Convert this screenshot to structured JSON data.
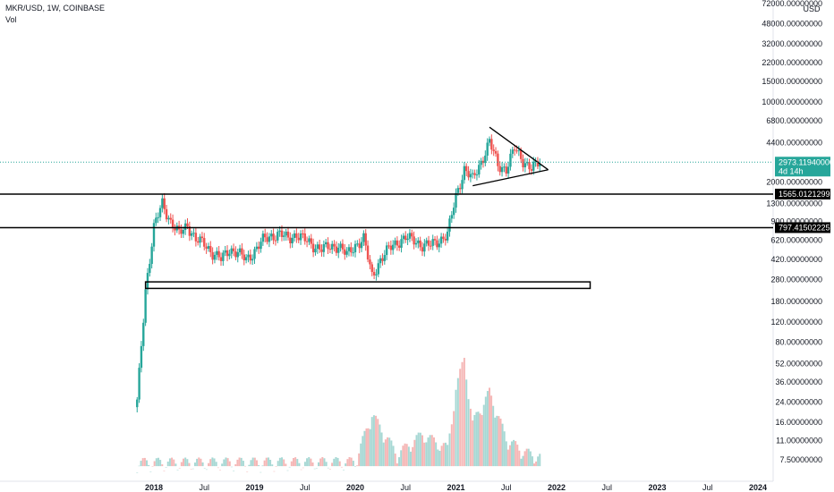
{
  "header": {
    "symbol_line": "MKR/USD, 1W, COINBASE",
    "volume_label": "Vol"
  },
  "colors": {
    "up": "#26a69a",
    "down": "#ef5350",
    "volume_up": "#a7d8d4",
    "volume_down": "#f5b7b6",
    "last_price": "#26a69a",
    "level": "#000000"
  },
  "chart_data": {
    "type": "candlestick",
    "y_scale": "log",
    "ylim": [
      6.5,
      72000
    ],
    "y_unit": "USD",
    "y_ticks": [
      "72000.00000000",
      "48000.00000000",
      "32000.00000000",
      "22000.00000000",
      "15000.00000000",
      "10000.00000000",
      "6800.00000000",
      "4400.00000000",
      "2000.00000000",
      "1300.00000000",
      "900.00000000",
      "620.00000000",
      "420.00000000",
      "280.00000000",
      "180.00000000",
      "120.00000000",
      "80.00000000",
      "52.00000000",
      "36.00000000",
      "24.00000000",
      "16.00000000",
      "11.00000000",
      "7.50000000"
    ],
    "x_ticks": [
      "2018",
      "Jul",
      "2019",
      "Jul",
      "2020",
      "Jul",
      "2021",
      "Jul",
      "2022",
      "Jul",
      "2023",
      "Jul",
      "2024"
    ],
    "last_price": {
      "value": "2973.11940000",
      "countdown": "4d 14h"
    },
    "horizontal_levels": [
      {
        "value": 1565.01212999,
        "label": "1565.01212999"
      },
      {
        "value": 797.41502225,
        "label": "797.41502225"
      }
    ],
    "support_zone": {
      "from": "2017-12",
      "to": "2022-05",
      "low": 235,
      "high": 268
    },
    "triangle": {
      "apex_date": "2021-12",
      "apex_price": 2550,
      "upper_start": [
        "2021-05",
        6000
      ],
      "lower_start": [
        "2021-03",
        1850
      ]
    },
    "price_path": [
      [
        "2017-11",
        24
      ],
      [
        "2017-12",
        230
      ],
      [
        "2018-01",
        800
      ],
      [
        "2018-02",
        1300
      ],
      [
        "2018-03",
        900
      ],
      [
        "2018-04",
        700
      ],
      [
        "2018-05",
        850
      ],
      [
        "2018-06",
        620
      ],
      [
        "2018-07",
        580
      ],
      [
        "2018-08",
        480
      ],
      [
        "2018-09",
        420
      ],
      [
        "2018-10",
        520
      ],
      [
        "2018-11",
        480
      ],
      [
        "2018-12",
        420
      ],
      [
        "2019-01",
        500
      ],
      [
        "2019-02",
        620
      ],
      [
        "2019-03",
        680
      ],
      [
        "2019-04",
        700
      ],
      [
        "2019-05",
        640
      ],
      [
        "2019-06",
        700
      ],
      [
        "2019-07",
        620
      ],
      [
        "2019-08",
        560
      ],
      [
        "2019-09",
        520
      ],
      [
        "2019-10",
        540
      ],
      [
        "2019-11",
        560
      ],
      [
        "2019-12",
        460
      ],
      [
        "2020-01",
        560
      ],
      [
        "2020-02",
        640
      ],
      [
        "2020-03",
        300
      ],
      [
        "2020-04",
        420
      ],
      [
        "2020-05",
        520
      ],
      [
        "2020-06",
        600
      ],
      [
        "2020-07",
        650
      ],
      [
        "2020-08",
        620
      ],
      [
        "2020-09",
        560
      ],
      [
        "2020-10",
        560
      ],
      [
        "2020-11",
        620
      ],
      [
        "2020-12",
        700
      ],
      [
        "2021-01",
        1500
      ],
      [
        "2021-02",
        2600
      ],
      [
        "2021-03",
        2100
      ],
      [
        "2021-04",
        3000
      ],
      [
        "2021-05",
        4500
      ],
      [
        "2021-06",
        2800
      ],
      [
        "2021-07",
        2600
      ],
      [
        "2021-08",
        3900
      ],
      [
        "2021-09",
        3100
      ],
      [
        "2021-10",
        2600
      ],
      [
        "2021-11",
        2973
      ]
    ],
    "volume_path": [
      [
        "2017-11",
        6.8
      ],
      [
        "2020-01",
        6.9
      ],
      [
        "2020-03",
        18
      ],
      [
        "2020-06",
        8
      ],
      [
        "2020-09",
        12
      ],
      [
        "2020-12",
        9
      ],
      [
        "2021-01",
        30
      ],
      [
        "2021-02",
        55
      ],
      [
        "2021-03",
        15
      ],
      [
        "2021-05",
        28
      ],
      [
        "2021-07",
        11
      ],
      [
        "2021-09",
        8.5
      ],
      [
        "2021-11",
        7.5
      ]
    ]
  }
}
